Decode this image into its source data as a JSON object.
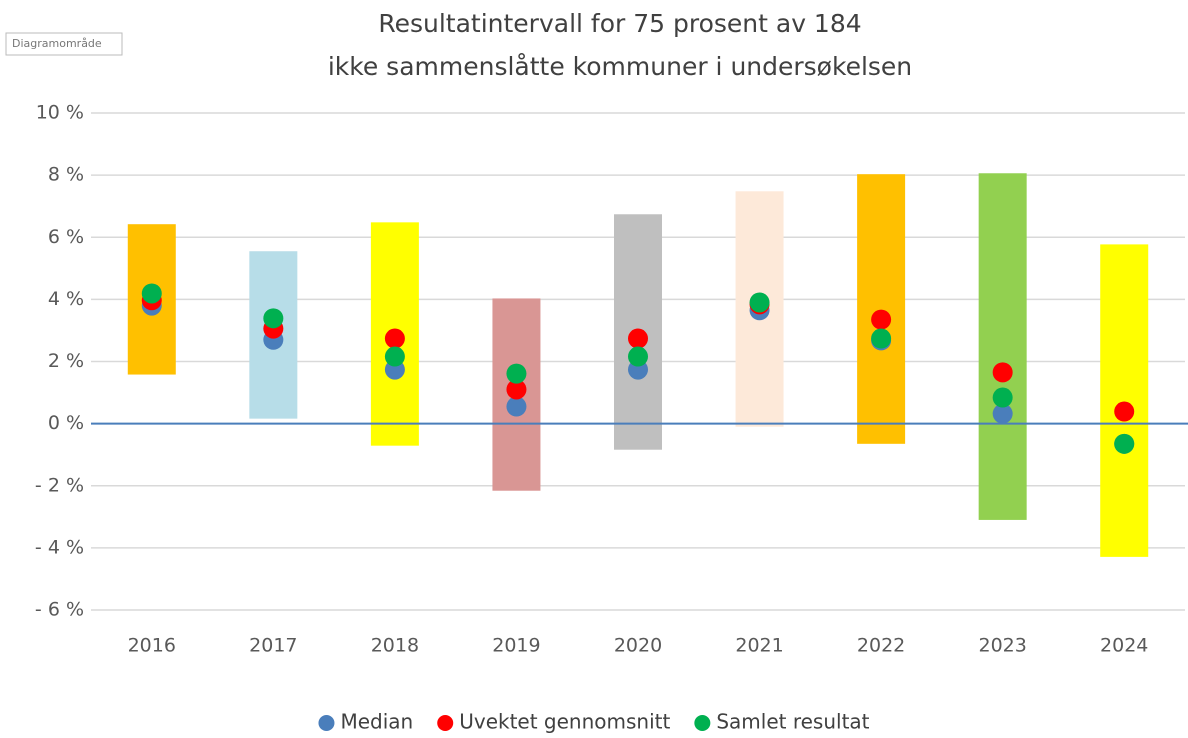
{
  "chart_data": {
    "type": "range_dot",
    "title": [
      "Resultatintervall for 75 prosent av 184",
      "ikke sammenslåtte kommuner i undersøkelsen"
    ],
    "tooltip": "Diagramområde",
    "categories": [
      "2016",
      "2017",
      "2018",
      "2019",
      "2020",
      "2021",
      "2022",
      "2023",
      "2024"
    ],
    "ranges": {
      "low": [
        1.58,
        0.16,
        -0.71,
        -2.16,
        -0.84,
        -0.1,
        -0.65,
        -3.1,
        -4.29
      ],
      "high": [
        6.42,
        5.55,
        6.48,
        4.03,
        6.74,
        7.48,
        8.03,
        8.06,
        5.77
      ],
      "colors": [
        "#ffc000",
        "#b7dde8",
        "#ffff00",
        "#d99694",
        "#bfbfbf",
        "#fde9d9",
        "#ffc000",
        "#92d050",
        "#ffff00"
      ]
    },
    "series": [
      {
        "name": "Median",
        "color": "#4a7ebb",
        "values": [
          3.8,
          2.7,
          1.74,
          0.55,
          1.74,
          3.65,
          2.68,
          0.32,
          -0.65
        ]
      },
      {
        "name": "Uvektet gennomsnitt",
        "color": "#ff0000",
        "values": [
          3.97,
          3.06,
          2.74,
          1.1,
          2.74,
          3.84,
          3.35,
          1.65,
          0.39
        ]
      },
      {
        "name": "Samlet resultat",
        "color": "#00b050",
        "values": [
          4.19,
          3.39,
          2.16,
          1.61,
          2.16,
          3.9,
          2.74,
          0.84,
          -0.65
        ]
      }
    ],
    "ylim": [
      -6,
      10
    ],
    "yticks": [
      {
        "value": -6,
        "label": "- 6 %"
      },
      {
        "value": -4,
        "label": "- 4 %"
      },
      {
        "value": -2,
        "label": "- 2 %"
      },
      {
        "value": 0,
        "label": "0 %"
      },
      {
        "value": 2,
        "label": "2 %"
      },
      {
        "value": 4,
        "label": "4 %"
      },
      {
        "value": 6,
        "label": "6 %"
      },
      {
        "value": 8,
        "label": "8 %"
      },
      {
        "value": 10,
        "label": "10 %"
      }
    ],
    "grid": true,
    "zero_line_color": "#4a7ebb",
    "legend": "bottom"
  }
}
